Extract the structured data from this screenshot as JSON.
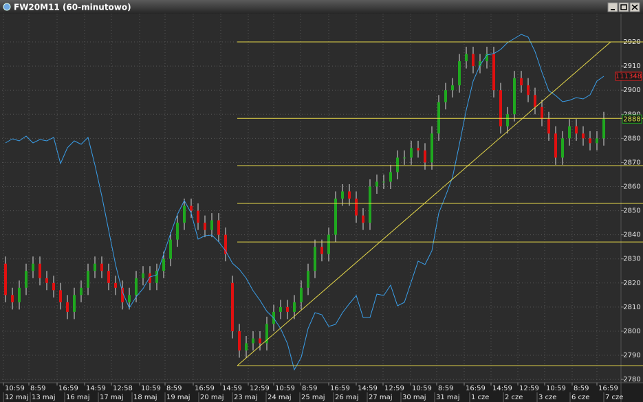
{
  "chart_data": {
    "type": "candlestick",
    "title": "FW20M11 (60-minutowo)",
    "xlim": [
      0,
      90
    ],
    "ylim": [
      2778.6,
      2931.7
    ],
    "yticks": [
      2780,
      2790,
      2800,
      2810,
      2820,
      2830,
      2840,
      2850,
      2860,
      2870,
      2880,
      2890,
      2900,
      2910,
      2920
    ],
    "grid": true,
    "xticks": [
      {
        "value": 0.2,
        "label": "10:59"
      },
      {
        "value": 3.9,
        "label": "8:59"
      },
      {
        "value": 8,
        "label": "16:59"
      },
      {
        "value": 12,
        "label": "14:59"
      },
      {
        "value": 15.9,
        "label": "12:58"
      },
      {
        "value": 20,
        "label": "10:59"
      },
      {
        "value": 23.7,
        "label": "8:59"
      },
      {
        "value": 27.8,
        "label": "16:59"
      },
      {
        "value": 31.8,
        "label": "14:59"
      },
      {
        "value": 35.8,
        "label": "12:59"
      },
      {
        "value": 39.5,
        "label": "10:59"
      },
      {
        "value": 43.4,
        "label": "8:59"
      },
      {
        "value": 47.5,
        "label": "16:59"
      },
      {
        "value": 51.5,
        "label": "14:59"
      },
      {
        "value": 55.4,
        "label": "12:59"
      },
      {
        "value": 59.4,
        "label": "10:59"
      },
      {
        "value": 63.2,
        "label": "8:59"
      },
      {
        "value": 67.2,
        "label": "16:59"
      },
      {
        "value": 71.1,
        "label": "14:59"
      },
      {
        "value": 75,
        "label": "12:59"
      },
      {
        "value": 78.9,
        "label": "10:59"
      },
      {
        "value": 82.9,
        "label": "8:59"
      },
      {
        "value": 86.5,
        "label": "16:59"
      }
    ],
    "date_ticks": [
      {
        "value": 0.2,
        "label": "12 maj"
      },
      {
        "value": 4.1,
        "label": "13 maj"
      },
      {
        "value": 9.1,
        "label": "16 maj"
      },
      {
        "value": 14,
        "label": "17 maj"
      },
      {
        "value": 18.9,
        "label": "18 maj"
      },
      {
        "value": 23.7,
        "label": "19 maj"
      },
      {
        "value": 28.6,
        "label": "20 maj"
      },
      {
        "value": 33.5,
        "label": "23 maj"
      },
      {
        "value": 38.4,
        "label": "24 maj"
      },
      {
        "value": 43.3,
        "label": "25 maj"
      },
      {
        "value": 48.2,
        "label": "26 maj"
      },
      {
        "value": 53.1,
        "label": "27 maj"
      },
      {
        "value": 58,
        "label": "30 maj"
      },
      {
        "value": 62.9,
        "label": "31 maj"
      },
      {
        "value": 68,
        "label": "1 cze"
      },
      {
        "value": 72.9,
        "label": "2 cze"
      },
      {
        "value": 77.8,
        "label": "3 cze"
      },
      {
        "value": 82.6,
        "label": "6 cze"
      },
      {
        "value": 87.5,
        "label": "7 cze"
      }
    ],
    "up_color": "#1fa81f",
    "down_color": "#e01010",
    "open": [
      2828,
      2815,
      2812,
      2818,
      2825,
      2828,
      2822,
      2820,
      2817,
      2812,
      2808,
      2815,
      2818,
      2825,
      2828,
      2825,
      2820,
      2818,
      2812,
      2815,
      2822,
      2824,
      2820,
      2825,
      2830,
      2838,
      2845,
      2852,
      2850,
      2845,
      2842,
      2846,
      2840,
      2820,
      2800,
      2792,
      2795,
      2797,
      2795,
      2803,
      2808,
      2810,
      2808,
      2812,
      2818,
      2825,
      2835,
      2832,
      2840,
      2855,
      2858,
      2855,
      2848,
      2845,
      2860,
      2862,
      2862,
      2866,
      2872,
      2872,
      2876,
      2875,
      2870,
      2882,
      2895,
      2900,
      2902,
      2912,
      2915,
      2910,
      2912,
      2915,
      2900,
      2885,
      2890,
      2905,
      2902,
      2898,
      2893,
      2888,
      2882,
      2872,
      2880,
      2885,
      2882,
      2880,
      2878,
      2880
    ],
    "high": [
      2831,
      2818,
      2821,
      2828,
      2831,
      2831,
      2825,
      2823,
      2820,
      2815,
      2818,
      2821,
      2828,
      2831,
      2831,
      2828,
      2823,
      2821,
      2818,
      2825,
      2827,
      2827,
      2828,
      2833,
      2841,
      2848,
      2855,
      2855,
      2853,
      2848,
      2849,
      2849,
      2843,
      2823,
      2803,
      2798,
      2800,
      2800,
      2806,
      2811,
      2813,
      2813,
      2815,
      2821,
      2828,
      2838,
      2838,
      2843,
      2858,
      2861,
      2861,
      2858,
      2851,
      2863,
      2865,
      2865,
      2869,
      2875,
      2875,
      2879,
      2879,
      2878,
      2885,
      2898,
      2903,
      2905,
      2915,
      2918,
      2918,
      2915,
      2918,
      2918,
      2903,
      2893,
      2908,
      2908,
      2905,
      2901,
      2896,
      2891,
      2885,
      2883,
      2888,
      2888,
      2885,
      2883,
      2883,
      2891
    ],
    "low": [
      2812,
      2809,
      2809,
      2815,
      2822,
      2819,
      2817,
      2814,
      2809,
      2805,
      2805,
      2812,
      2815,
      2822,
      2822,
      2817,
      2815,
      2809,
      2809,
      2812,
      2819,
      2817,
      2817,
      2822,
      2827,
      2835,
      2842,
      2847,
      2842,
      2839,
      2839,
      2837,
      2829,
      2797,
      2789,
      2789,
      2792,
      2792,
      2792,
      2800,
      2805,
      2805,
      2805,
      2809,
      2815,
      2822,
      2829,
      2829,
      2837,
      2852,
      2852,
      2845,
      2842,
      2842,
      2857,
      2859,
      2859,
      2863,
      2869,
      2869,
      2872,
      2867,
      2867,
      2879,
      2892,
      2897,
      2899,
      2909,
      2907,
      2907,
      2909,
      2897,
      2882,
      2882,
      2887,
      2899,
      2895,
      2890,
      2885,
      2879,
      2869,
      2869,
      2877,
      2879,
      2877,
      2875,
      2875,
      2877
    ],
    "close": [
      2815,
      2812,
      2818,
      2825,
      2828,
      2822,
      2820,
      2817,
      2812,
      2808,
      2815,
      2818,
      2825,
      2828,
      2825,
      2820,
      2818,
      2812,
      2815,
      2822,
      2824,
      2820,
      2825,
      2830,
      2838,
      2845,
      2852,
      2850,
      2845,
      2842,
      2846,
      2840,
      2832,
      2800,
      2792,
      2795,
      2797,
      2795,
      2803,
      2808,
      2810,
      2808,
      2812,
      2818,
      2825,
      2835,
      2832,
      2840,
      2855,
      2858,
      2855,
      2848,
      2845,
      2860,
      2862,
      2862,
      2866,
      2872,
      2872,
      2876,
      2875,
      2870,
      2882,
      2895,
      2900,
      2902,
      2912,
      2915,
      2910,
      2912,
      2915,
      2900,
      2885,
      2890,
      2905,
      2902,
      2898,
      2893,
      2888,
      2882,
      2872,
      2880,
      2885,
      2882,
      2880,
      2878,
      2880,
      2888
    ],
    "y2lim": [
      102428,
      113168
    ],
    "series": [
      {
        "color": "#3a9ee8",
        "axis": "y2",
        "values": [
          109408,
          109528,
          109468,
          109608,
          109408,
          109508,
          109468,
          109568,
          108808,
          109268,
          109468,
          109368,
          109568,
          108768,
          107868,
          106868,
          105868,
          105068,
          104608,
          104928,
          105168,
          105508,
          105568,
          106168,
          106768,
          107328,
          107728,
          107368,
          106608,
          106708,
          106728,
          106528,
          106268,
          105908,
          105728,
          105468,
          105108,
          104828,
          104508,
          104308,
          104008,
          103568,
          102808,
          103168,
          104008,
          104468,
          104408,
          104068,
          104128,
          104468,
          104728,
          104968,
          104328,
          104328,
          105008,
          104968,
          105268,
          104668,
          104768,
          105368,
          105968,
          105868,
          106268,
          107368,
          107868,
          108408,
          109368,
          110368,
          111208,
          111668,
          111968,
          112008,
          112128,
          112328,
          112448,
          112568,
          112488,
          112068,
          111468,
          110928,
          110788,
          110608,
          110648,
          110728,
          110688,
          110808,
          111208,
          111348
        ]
      }
    ],
    "levels": [
      2920,
      2888.3,
      2868.7,
      2853,
      2837,
      2785.7
    ],
    "levels_start": 34.2,
    "levels_color": "#e6d84a",
    "trendline": {
      "x": [
        34.2,
        88.5
      ],
      "y": [
        2785.7,
        2920
      ]
    }
  }
}
